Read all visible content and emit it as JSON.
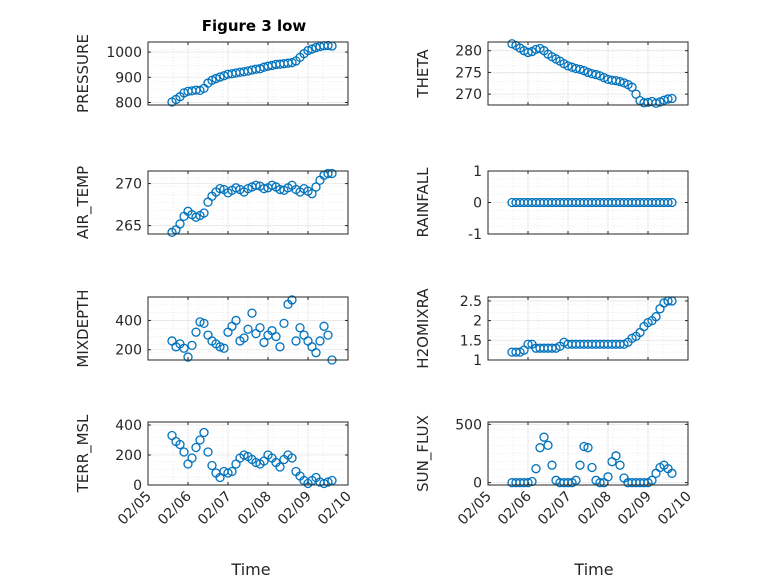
{
  "figure": {
    "title": "Figure 3 low",
    "xlabel": "Time",
    "x_ticklabels": [
      "02/05",
      "02/06",
      "02/07",
      "02/08",
      "02/09",
      "02/10"
    ]
  },
  "chart_data": [
    {
      "type": "scatter",
      "ylabel": "PRESSURE",
      "ylim": [
        790,
        1040
      ],
      "yticks": [
        800,
        900,
        1000
      ],
      "ytick_labels": [
        "800",
        "900",
        "1000"
      ],
      "xlim": [
        0,
        5
      ],
      "grid": true,
      "marker_color": "#0072BD",
      "x": [
        0.6,
        0.7,
        0.8,
        0.9,
        1.0,
        1.1,
        1.2,
        1.3,
        1.4,
        1.5,
        1.6,
        1.7,
        1.8,
        1.9,
        2.0,
        2.1,
        2.2,
        2.3,
        2.4,
        2.5,
        2.6,
        2.7,
        2.8,
        2.9,
        3.0,
        3.1,
        3.2,
        3.3,
        3.4,
        3.5,
        3.6,
        3.7,
        3.8,
        3.9,
        4.0,
        4.1,
        4.2,
        4.3,
        4.4,
        4.5,
        4.6
      ],
      "y": [
        802,
        812,
        823,
        838,
        844,
        846,
        849,
        848,
        856,
        877,
        888,
        895,
        901,
        906,
        912,
        914,
        917,
        920,
        922,
        925,
        929,
        932,
        934,
        940,
        944,
        947,
        951,
        952,
        954,
        956,
        958,
        965,
        979,
        994,
        1006,
        1012,
        1018,
        1022,
        1025,
        1026,
        1024
      ]
    },
    {
      "type": "scatter",
      "ylabel": "THETA",
      "ylim": [
        267.5,
        282
      ],
      "yticks": [
        270,
        275,
        280
      ],
      "ytick_labels": [
        "270",
        "275",
        "280"
      ],
      "xlim": [
        0,
        5
      ],
      "grid": true,
      "marker_color": "#0072BD",
      "x": [
        0.6,
        0.7,
        0.8,
        0.9,
        1.0,
        1.1,
        1.2,
        1.3,
        1.4,
        1.5,
        1.6,
        1.7,
        1.8,
        1.9,
        2.0,
        2.1,
        2.2,
        2.3,
        2.4,
        2.5,
        2.6,
        2.7,
        2.8,
        2.9,
        3.0,
        3.1,
        3.2,
        3.3,
        3.4,
        3.5,
        3.6,
        3.7,
        3.8,
        3.9,
        4.0,
        4.1,
        4.2,
        4.3,
        4.4,
        4.5,
        4.6
      ],
      "y": [
        281.6,
        281.2,
        280.6,
        280.0,
        279.6,
        279.8,
        280.3,
        280.5,
        280.0,
        279.2,
        278.6,
        278.1,
        277.6,
        277.0,
        276.5,
        276.2,
        275.9,
        275.7,
        275.4,
        275.0,
        274.7,
        274.5,
        274.2,
        273.8,
        273.4,
        273.2,
        273.1,
        272.9,
        272.6,
        272.2,
        271.6,
        270.0,
        268.5,
        268.0,
        268.1,
        268.3,
        267.9,
        268.2,
        268.6,
        268.9,
        269.0
      ]
    },
    {
      "type": "scatter",
      "ylabel": "AIR_TEMP",
      "ylim": [
        264,
        271.5
      ],
      "yticks": [
        265,
        270
      ],
      "ytick_labels": [
        "265",
        "270"
      ],
      "xlim": [
        0,
        5
      ],
      "grid": true,
      "marker_color": "#0072BD",
      "x": [
        0.6,
        0.7,
        0.8,
        0.9,
        1.0,
        1.1,
        1.2,
        1.3,
        1.4,
        1.5,
        1.6,
        1.7,
        1.8,
        1.9,
        2.0,
        2.1,
        2.2,
        2.3,
        2.4,
        2.5,
        2.6,
        2.7,
        2.8,
        2.9,
        3.0,
        3.1,
        3.2,
        3.3,
        3.4,
        3.5,
        3.6,
        3.7,
        3.8,
        3.9,
        4.0,
        4.1,
        4.2,
        4.3,
        4.4,
        4.5,
        4.6
      ],
      "y": [
        264.2,
        264.5,
        265.2,
        266.1,
        266.7,
        266.3,
        266.0,
        266.2,
        266.5,
        267.8,
        268.5,
        269.0,
        269.4,
        269.3,
        268.9,
        269.2,
        269.5,
        269.3,
        269.0,
        269.4,
        269.6,
        269.8,
        269.7,
        269.4,
        269.5,
        269.8,
        269.6,
        269.3,
        269.2,
        269.5,
        269.8,
        269.3,
        269.0,
        269.4,
        269.1,
        268.8,
        269.6,
        270.4,
        271.0,
        271.2,
        271.2
      ]
    },
    {
      "type": "scatter",
      "ylabel": "RAINFALL",
      "ylim": [
        -1,
        1
      ],
      "yticks": [
        -1,
        0,
        1
      ],
      "ytick_labels": [
        "-1",
        "0",
        "1"
      ],
      "xlim": [
        0,
        5
      ],
      "grid": true,
      "marker_color": "#0072BD",
      "x": [
        0.6,
        0.7,
        0.8,
        0.9,
        1.0,
        1.1,
        1.2,
        1.3,
        1.4,
        1.5,
        1.6,
        1.7,
        1.8,
        1.9,
        2.0,
        2.1,
        2.2,
        2.3,
        2.4,
        2.5,
        2.6,
        2.7,
        2.8,
        2.9,
        3.0,
        3.1,
        3.2,
        3.3,
        3.4,
        3.5,
        3.6,
        3.7,
        3.8,
        3.9,
        4.0,
        4.1,
        4.2,
        4.3,
        4.4,
        4.5,
        4.6
      ],
      "y": [
        0,
        0,
        0,
        0,
        0,
        0,
        0,
        0,
        0,
        0,
        0,
        0,
        0,
        0,
        0,
        0,
        0,
        0,
        0,
        0,
        0,
        0,
        0,
        0,
        0,
        0,
        0,
        0,
        0,
        0,
        0,
        0,
        0,
        0,
        0,
        0,
        0,
        0,
        0,
        0,
        0
      ]
    },
    {
      "type": "scatter",
      "ylabel": "MIXDEPTH",
      "ylim": [
        130,
        560
      ],
      "yticks": [
        200,
        400
      ],
      "ytick_labels": [
        "200",
        "400"
      ],
      "xlim": [
        0,
        5
      ],
      "grid": true,
      "marker_color": "#0072BD",
      "x": [
        0.6,
        0.7,
        0.8,
        0.9,
        1.0,
        1.1,
        1.2,
        1.3,
        1.4,
        1.5,
        1.6,
        1.7,
        1.8,
        1.9,
        2.0,
        2.1,
        2.2,
        2.3,
        2.4,
        2.5,
        2.6,
        2.7,
        2.8,
        2.9,
        3.0,
        3.1,
        3.2,
        3.3,
        3.4,
        3.5,
        3.6,
        3.7,
        3.8,
        3.9,
        4.0,
        4.1,
        4.2,
        4.3,
        4.4,
        4.5,
        4.6
      ],
      "y": [
        260,
        220,
        240,
        210,
        150,
        230,
        320,
        390,
        380,
        300,
        260,
        240,
        220,
        210,
        320,
        360,
        400,
        260,
        280,
        340,
        450,
        310,
        350,
        250,
        300,
        330,
        290,
        220,
        380,
        510,
        540,
        260,
        350,
        300,
        260,
        220,
        180,
        260,
        360,
        300,
        130
      ]
    },
    {
      "type": "scatter",
      "ylabel": "H2OMIXRA",
      "ylim": [
        1,
        2.6
      ],
      "yticks": [
        1,
        1.5,
        2,
        2.5
      ],
      "ytick_labels": [
        "1",
        "1.5",
        "2",
        "2.5"
      ],
      "xlim": [
        0,
        5
      ],
      "grid": true,
      "marker_color": "#0072BD",
      "x": [
        0.6,
        0.7,
        0.8,
        0.9,
        1.0,
        1.1,
        1.2,
        1.3,
        1.4,
        1.5,
        1.6,
        1.7,
        1.8,
        1.9,
        2.0,
        2.1,
        2.2,
        2.3,
        2.4,
        2.5,
        2.6,
        2.7,
        2.8,
        2.9,
        3.0,
        3.1,
        3.2,
        3.3,
        3.4,
        3.5,
        3.6,
        3.7,
        3.8,
        3.9,
        4.0,
        4.1,
        4.2,
        4.3,
        4.4,
        4.5,
        4.6
      ],
      "y": [
        1.2,
        1.2,
        1.2,
        1.25,
        1.4,
        1.4,
        1.3,
        1.3,
        1.3,
        1.3,
        1.3,
        1.3,
        1.35,
        1.45,
        1.4,
        1.4,
        1.4,
        1.4,
        1.4,
        1.4,
        1.4,
        1.4,
        1.4,
        1.4,
        1.4,
        1.4,
        1.4,
        1.4,
        1.4,
        1.45,
        1.55,
        1.6,
        1.7,
        1.85,
        1.95,
        2.0,
        2.1,
        2.3,
        2.45,
        2.5,
        2.5
      ]
    },
    {
      "type": "scatter",
      "ylabel": "TERR_MSL",
      "ylim": [
        0,
        420
      ],
      "yticks": [
        0,
        200,
        400
      ],
      "ytick_labels": [
        "0",
        "200",
        "400"
      ],
      "xlim": [
        0,
        5
      ],
      "grid": true,
      "marker_color": "#0072BD",
      "x": [
        0.6,
        0.7,
        0.8,
        0.9,
        1.0,
        1.1,
        1.2,
        1.3,
        1.4,
        1.5,
        1.6,
        1.7,
        1.8,
        1.9,
        2.0,
        2.1,
        2.2,
        2.3,
        2.4,
        2.5,
        2.6,
        2.7,
        2.8,
        2.9,
        3.0,
        3.1,
        3.2,
        3.3,
        3.4,
        3.5,
        3.6,
        3.7,
        3.8,
        3.9,
        4.0,
        4.1,
        4.2,
        4.3,
        4.4,
        4.5,
        4.6
      ],
      "y": [
        330,
        290,
        270,
        220,
        140,
        180,
        250,
        300,
        350,
        220,
        130,
        80,
        50,
        90,
        80,
        90,
        140,
        180,
        200,
        190,
        170,
        150,
        140,
        160,
        200,
        180,
        150,
        120,
        170,
        200,
        180,
        90,
        60,
        30,
        10,
        30,
        50,
        20,
        10,
        20,
        30
      ]
    },
    {
      "type": "scatter",
      "ylabel": "SUN_FLUX",
      "ylim": [
        -20,
        520
      ],
      "yticks": [
        0,
        500
      ],
      "ytick_labels": [
        "0",
        "500"
      ],
      "xlim": [
        0,
        5
      ],
      "grid": true,
      "marker_color": "#0072BD",
      "x": [
        0.6,
        0.7,
        0.8,
        0.9,
        1.0,
        1.1,
        1.2,
        1.3,
        1.4,
        1.5,
        1.6,
        1.7,
        1.8,
        1.9,
        2.0,
        2.1,
        2.2,
        2.3,
        2.4,
        2.5,
        2.6,
        2.7,
        2.8,
        2.9,
        3.0,
        3.1,
        3.2,
        3.3,
        3.4,
        3.5,
        3.6,
        3.7,
        3.8,
        3.9,
        4.0,
        4.1,
        4.2,
        4.3,
        4.4,
        4.5,
        4.6
      ],
      "y": [
        0,
        0,
        0,
        0,
        0,
        10,
        120,
        300,
        390,
        320,
        150,
        20,
        0,
        0,
        0,
        0,
        20,
        150,
        310,
        300,
        130,
        20,
        0,
        0,
        50,
        180,
        230,
        150,
        40,
        0,
        0,
        0,
        0,
        0,
        0,
        20,
        80,
        130,
        150,
        120,
        80
      ]
    }
  ]
}
